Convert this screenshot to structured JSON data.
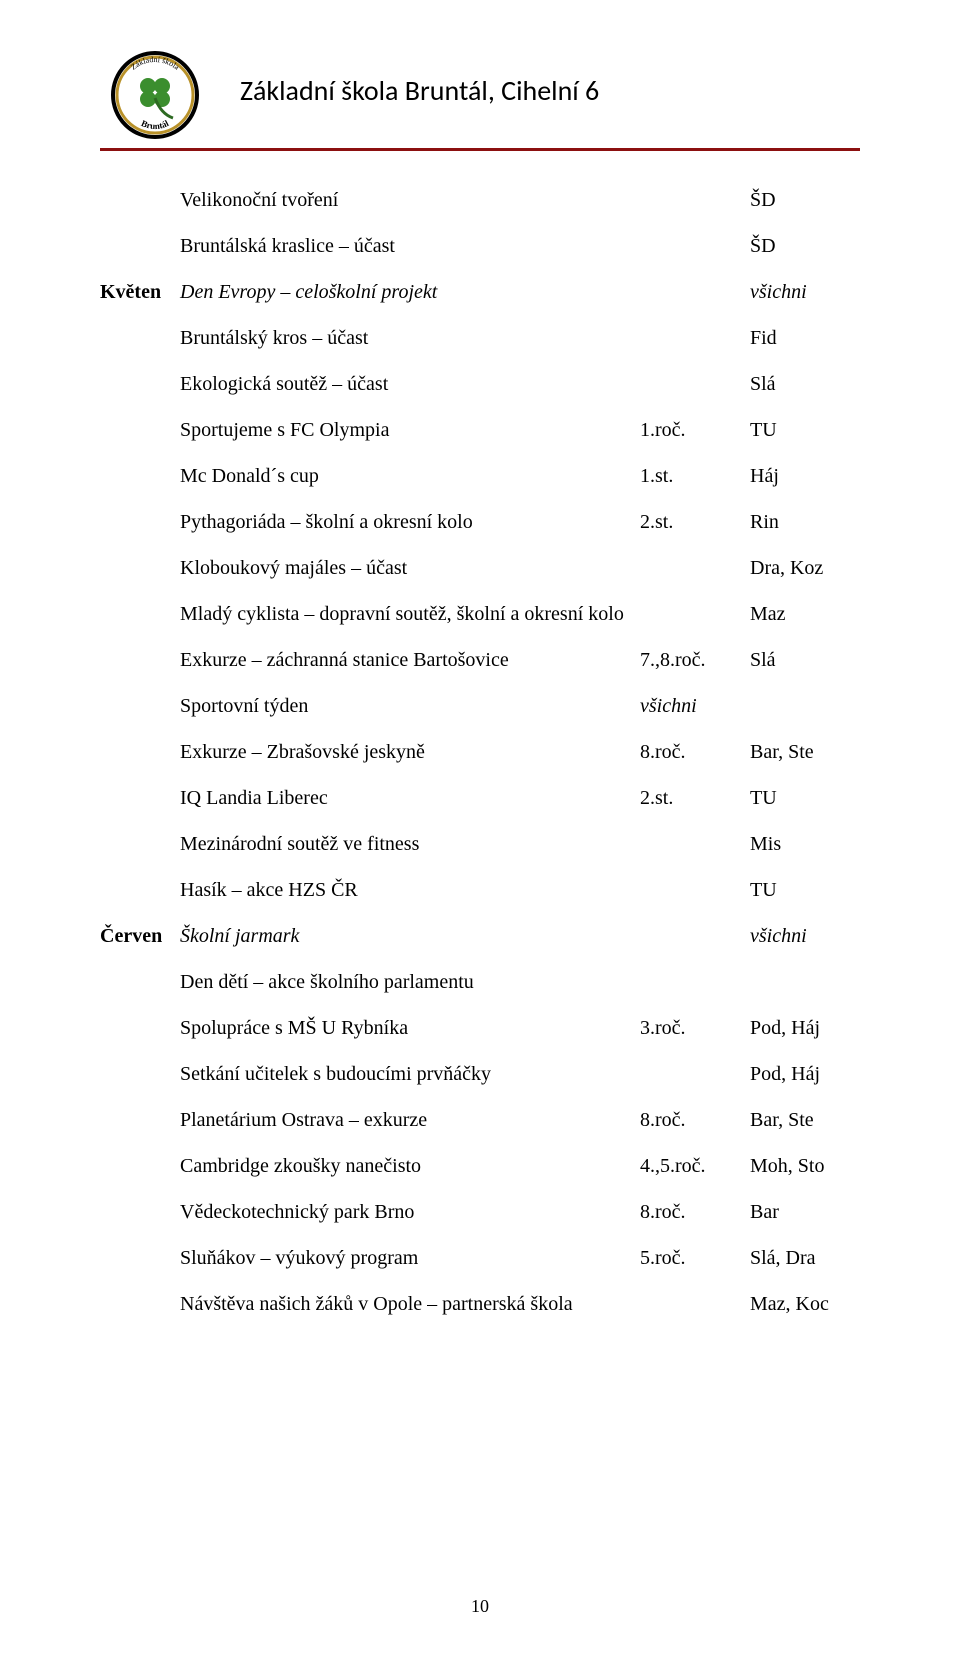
{
  "header": {
    "school_name": "Základní škola Bruntál, Cihelní 6",
    "logo_top_text": "Základní škola",
    "logo_bottom_text": "Bruntál",
    "rule_color": "#8c1010",
    "leaf_color": "#3b8e2e",
    "border_gold": "#b9922a"
  },
  "page_number": "10",
  "font": {
    "body_family": "Times New Roman",
    "header_family": "Calibri",
    "body_size_pt": 15,
    "header_size_pt": 21
  },
  "rows": [
    {
      "month": "",
      "activity": "Velikonoční tvoření",
      "activity_italic": false,
      "col2": "",
      "col2_italic": false,
      "col3": "ŠD",
      "col3_italic": false
    },
    {
      "month": "",
      "activity": "Bruntálská kraslice – účast",
      "activity_italic": false,
      "col2": "",
      "col2_italic": false,
      "col3": "ŠD",
      "col3_italic": false
    },
    {
      "month": "Květen",
      "activity": "Den Evropy – celoškolní projekt",
      "activity_italic": true,
      "col2": "",
      "col2_italic": false,
      "col3": "všichni",
      "col3_italic": true
    },
    {
      "month": "",
      "activity": "Bruntálský kros – účast",
      "activity_italic": false,
      "col2": "",
      "col2_italic": false,
      "col3": "Fid",
      "col3_italic": false
    },
    {
      "month": "",
      "activity": "Ekologická soutěž – účast",
      "activity_italic": false,
      "col2": "",
      "col2_italic": false,
      "col3": "Slá",
      "col3_italic": false
    },
    {
      "month": "",
      "activity": "Sportujeme s FC Olympia",
      "activity_italic": false,
      "col2": "1.roč.",
      "col2_italic": false,
      "col3": "TU",
      "col3_italic": false
    },
    {
      "month": "",
      "activity": "Mc Donald´s cup",
      "activity_italic": false,
      "col2": "1.st.",
      "col2_italic": false,
      "col3": "Háj",
      "col3_italic": false
    },
    {
      "month": "",
      "activity": "Pythagoriáda – školní a okresní kolo",
      "activity_italic": false,
      "col2": "2.st.",
      "col2_italic": false,
      "col3": "Rin",
      "col3_italic": false
    },
    {
      "month": "",
      "activity": "Kloboukový majáles – účast",
      "activity_italic": false,
      "col2": "",
      "col2_italic": false,
      "col3": "Dra, Koz",
      "col3_italic": false
    },
    {
      "month": "",
      "activity": "Mladý cyklista – dopravní soutěž, školní a okresní kolo",
      "activity_italic": false,
      "col2": "",
      "col2_italic": false,
      "col3": "Maz",
      "col3_italic": false
    },
    {
      "month": "",
      "activity": "Exkurze – záchranná stanice Bartošovice",
      "activity_italic": false,
      "col2": "7.,8.roč.",
      "col2_italic": false,
      "col3": "Slá",
      "col3_italic": false
    },
    {
      "month": "",
      "activity": "Sportovní týden",
      "activity_italic": false,
      "col2": "všichni",
      "col2_italic": true,
      "col3": "",
      "col3_italic": false
    },
    {
      "month": "",
      "activity": "Exkurze – Zbrašovské jeskyně",
      "activity_italic": false,
      "col2": "8.roč.",
      "col2_italic": false,
      "col3": "Bar, Ste",
      "col3_italic": false
    },
    {
      "month": "",
      "activity": "IQ Landia Liberec",
      "activity_italic": false,
      "col2": "2.st.",
      "col2_italic": false,
      "col3": "TU",
      "col3_italic": false
    },
    {
      "month": "",
      "activity": "Mezinárodní soutěž ve fitness",
      "activity_italic": false,
      "col2": "",
      "col2_italic": false,
      "col3": "Mis",
      "col3_italic": false
    },
    {
      "month": "",
      "activity": "Hasík – akce HZS ČR",
      "activity_italic": false,
      "col2": "",
      "col2_italic": false,
      "col3": "TU",
      "col3_italic": false
    },
    {
      "month": "Červen",
      "activity": "Školní jarmark",
      "activity_italic": true,
      "col2": "",
      "col2_italic": false,
      "col3": "všichni",
      "col3_italic": true
    },
    {
      "month": "",
      "activity": "Den dětí – akce školního parlamentu",
      "activity_italic": false,
      "col2": "",
      "col2_italic": false,
      "col3": "",
      "col3_italic": false
    },
    {
      "month": "",
      "activity": "Spolupráce s MŠ U Rybníka",
      "activity_italic": false,
      "col2": "3.roč.",
      "col2_italic": false,
      "col3": "Pod, Háj",
      "col3_italic": false
    },
    {
      "month": "",
      "activity": "Setkání učitelek s budoucími prvňáčky",
      "activity_italic": false,
      "col2": "",
      "col2_italic": false,
      "col3": "Pod, Háj",
      "col3_italic": false
    },
    {
      "month": "",
      "activity": "Planetárium Ostrava – exkurze",
      "activity_italic": false,
      "col2": "8.roč.",
      "col2_italic": false,
      "col3": "Bar, Ste",
      "col3_italic": false
    },
    {
      "month": "",
      "activity": "Cambridge zkoušky nanečisto",
      "activity_italic": false,
      "col2": "4.,5.roč.",
      "col2_italic": false,
      "col3": "Moh, Sto",
      "col3_italic": false
    },
    {
      "month": "",
      "activity": "Vědeckotechnický park Brno",
      "activity_italic": false,
      "col2": "8.roč.",
      "col2_italic": false,
      "col3": "Bar",
      "col3_italic": false
    },
    {
      "month": "",
      "activity": "Sluňákov – výukový program",
      "activity_italic": false,
      "col2": "5.roč.",
      "col2_italic": false,
      "col3": "Slá, Dra",
      "col3_italic": false
    },
    {
      "month": "",
      "activity": "Návštěva našich žáků v Opole – partnerská škola",
      "activity_italic": false,
      "col2": "",
      "col2_italic": false,
      "col3": "Maz, Koc",
      "col3_italic": false
    }
  ]
}
